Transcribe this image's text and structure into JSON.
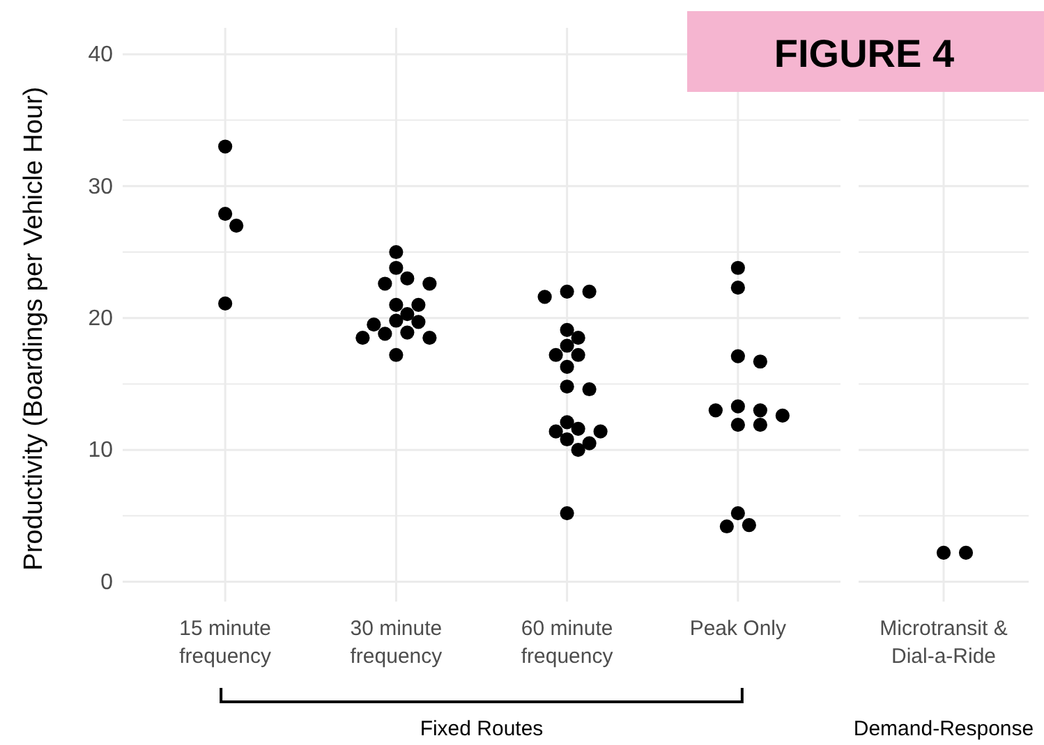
{
  "chart_data": [
    {
      "type": "scatter",
      "title": "FIGURE 4",
      "xlabel": "Fixed Routes",
      "ylabel": "Productivity (Boardings per Vehicle Hour)",
      "categories": [
        "15 minute frequency",
        "30 minute frequency",
        "60 minute frequency",
        "Peak Only"
      ],
      "ylim": [
        -1.5,
        42
      ],
      "yticks": [
        0,
        {
          "value": 5,
          "label": null
        },
        10,
        {
          "value": 15,
          "label": null
        },
        20,
        {
          "value": 25,
          "label": null
        },
        30,
        {
          "value": 35,
          "label": null
        },
        40
      ],
      "grid": true,
      "marker": "circle",
      "series": [
        {
          "color": "#000000",
          "x": [
            "15 minute frequency",
            "15 minute frequency",
            "15 minute frequency",
            "15 minute frequency",
            "30 minute frequency",
            "30 minute frequency",
            "30 minute frequency",
            "30 minute frequency",
            "30 minute frequency",
            "30 minute frequency",
            "30 minute frequency",
            "30 minute frequency",
            "30 minute frequency",
            "30 minute frequency",
            "30 minute frequency",
            "30 minute frequency",
            "30 minute frequency",
            "30 minute frequency",
            "30 minute frequency",
            "30 minute frequency",
            "60 minute frequency",
            "60 minute frequency",
            "60 minute frequency",
            "60 minute frequency",
            "60 minute frequency",
            "60 minute frequency",
            "60 minute frequency",
            "60 minute frequency",
            "60 minute frequency",
            "60 minute frequency",
            "60 minute frequency",
            "60 minute frequency",
            "60 minute frequency",
            "60 minute frequency",
            "60 minute frequency",
            "60 minute frequency",
            "60 minute frequency",
            "60 minute frequency",
            "60 minute frequency",
            "Peak Only",
            "Peak Only",
            "Peak Only",
            "Peak Only",
            "Peak Only",
            "Peak Only",
            "Peak Only",
            "Peak Only",
            "Peak Only",
            "Peak Only",
            "Peak Only",
            "Peak Only",
            "Peak Only"
          ],
          "values": [
            33.0,
            27.9,
            27.0,
            21.1,
            25.0,
            23.8,
            23.0,
            22.6,
            22.6,
            21.0,
            21.0,
            20.3,
            19.8,
            19.7,
            19.5,
            18.9,
            18.8,
            18.5,
            18.5,
            17.2,
            22.0,
            22.0,
            21.6,
            19.1,
            18.5,
            17.9,
            17.2,
            17.2,
            16.3,
            14.8,
            14.6,
            12.1,
            11.6,
            11.4,
            11.4,
            10.8,
            10.5,
            10.0,
            5.2,
            23.8,
            22.3,
            17.1,
            16.7,
            13.3,
            13.0,
            13.0,
            12.6,
            11.9,
            11.9,
            5.2,
            4.3,
            4.2
          ]
        }
      ]
    },
    {
      "type": "scatter",
      "xlabel": "Demand-Response",
      "categories": [
        "Microtransit & Dial-a-Ride"
      ],
      "ylim": [
        -1.5,
        42
      ],
      "yticks": [
        0,
        {
          "value": 5,
          "label": null
        },
        10,
        {
          "value": 15,
          "label": null
        },
        20,
        {
          "value": 25,
          "label": null
        },
        30,
        {
          "value": 35,
          "label": null
        },
        40
      ],
      "tick_labels": "x",
      "grid": true,
      "marker": "circle",
      "series": [
        {
          "color": "#000000",
          "x": [
            "Microtransit & Dial-a-Ride",
            "Microtransit & Dial-a-Ride"
          ],
          "values": [
            2.2,
            2.2
          ]
        }
      ]
    }
  ]
}
